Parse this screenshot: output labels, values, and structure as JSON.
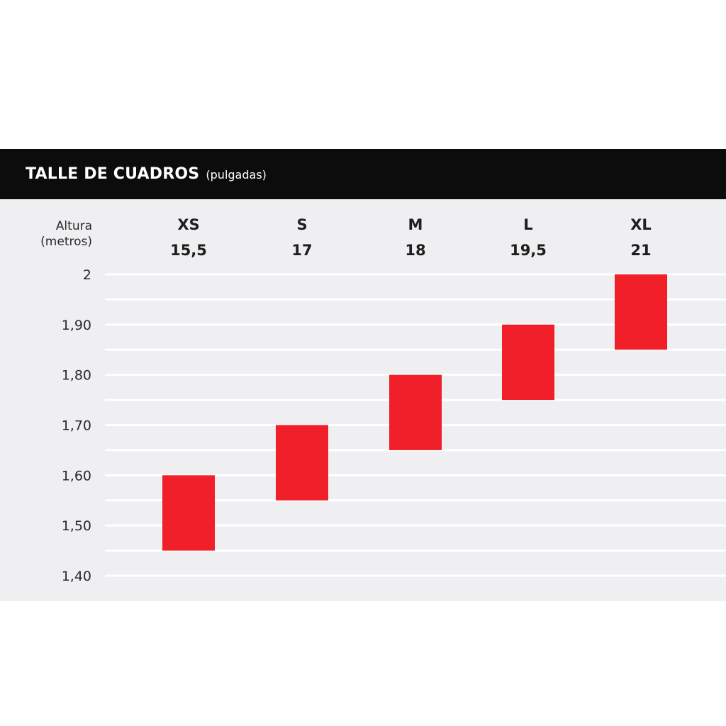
{
  "chart_data": {
    "type": "range-bar",
    "title": "TALLE DE CUADROS",
    "subtitle": "(pulgadas)",
    "ylabel": "Altura",
    "ylabel_unit": "(metros)",
    "categories": [
      {
        "size": "XS",
        "inches": "15,5"
      },
      {
        "size": "S",
        "inches": "17"
      },
      {
        "size": "M",
        "inches": "18"
      },
      {
        "size": "L",
        "inches": "19,5"
      },
      {
        "size": "XL",
        "inches": "21"
      }
    ],
    "ranges": [
      [
        1.45,
        1.6
      ],
      [
        1.55,
        1.7
      ],
      [
        1.65,
        1.8
      ],
      [
        1.75,
        1.9
      ],
      [
        1.85,
        2.0
      ]
    ],
    "y_ticks": [
      "2",
      "1,90",
      "1,80",
      "1,70",
      "1,60",
      "1,50",
      "1,40"
    ],
    "y_tick_values": [
      2.0,
      1.9,
      1.8,
      1.7,
      1.6,
      1.5,
      1.4
    ],
    "ylim": [
      1.4,
      2.0
    ],
    "minor_gridlines": [
      1.95,
      1.85,
      1.75,
      1.65,
      1.55,
      1.45
    ],
    "grid": true,
    "bar_color": "#f01f2a",
    "header_color": "#0c0c0c",
    "panel_color": "#efeff1"
  }
}
